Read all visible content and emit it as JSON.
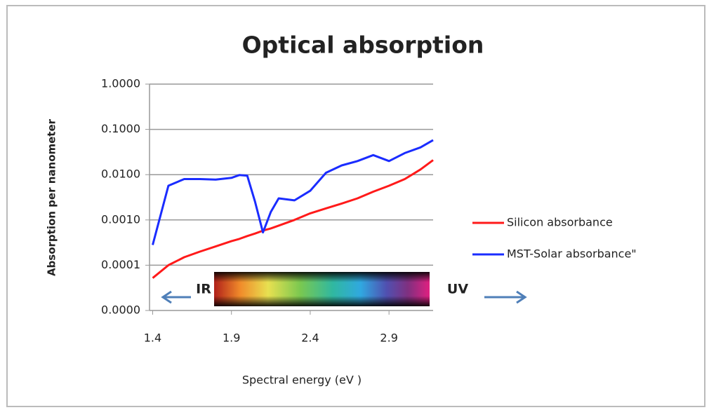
{
  "chart_data": {
    "type": "line",
    "title": "Optical absorption",
    "x_label": "Spectral energy (eV )",
    "y_label": "Absorption per nanometer",
    "annotations": [
      "IR",
      "UV"
    ],
    "log_y": true,
    "grid": true,
    "legend": "right",
    "x": [
      1.4,
      1.5,
      1.6,
      1.7,
      1.8,
      1.9,
      1.95,
      2.0,
      2.05,
      2.1,
      2.15,
      2.2,
      2.3,
      2.4,
      2.5,
      2.6,
      2.7,
      2.8,
      2.9,
      3.0,
      3.1,
      3.18
    ],
    "series": [
      {
        "name": "Silicon absorbance",
        "color": "#ff1a1a",
        "values": [
          5.2e-05,
          0.0001,
          0.00015,
          0.0002,
          0.00026,
          0.00034,
          0.00038,
          0.00044,
          0.0005,
          0.00058,
          0.00065,
          0.00075,
          0.001,
          0.0014,
          0.0018,
          0.0023,
          0.003,
          0.0042,
          0.0057,
          0.008,
          0.013,
          0.021
        ]
      },
      {
        "name": "MST-Solar absorbance\"",
        "color": "#1a2cff",
        "values": [
          0.00028,
          0.0057,
          0.008,
          0.008,
          0.0078,
          0.0085,
          0.0098,
          0.0095,
          0.0025,
          0.00053,
          0.0015,
          0.003,
          0.0027,
          0.0044,
          0.011,
          0.016,
          0.02,
          0.027,
          0.02,
          0.03,
          0.04,
          0.058
        ]
      }
    ],
    "xlim": [
      1.38,
      3.18
    ],
    "xticks": [
      1.4,
      1.9,
      2.4,
      2.9
    ],
    "ylim": [
      1e-05,
      1
    ],
    "yticks": [
      {
        "value": 1,
        "label": "1.0000"
      },
      {
        "value": 0.1,
        "label": "0.1000"
      },
      {
        "value": 0.01,
        "label": "0.0100"
      },
      {
        "value": 0.001,
        "label": "0.0010"
      },
      {
        "value": 0.0001,
        "label": "0.0001"
      },
      {
        "value": 1e-05,
        "label": "0.0000"
      }
    ]
  }
}
